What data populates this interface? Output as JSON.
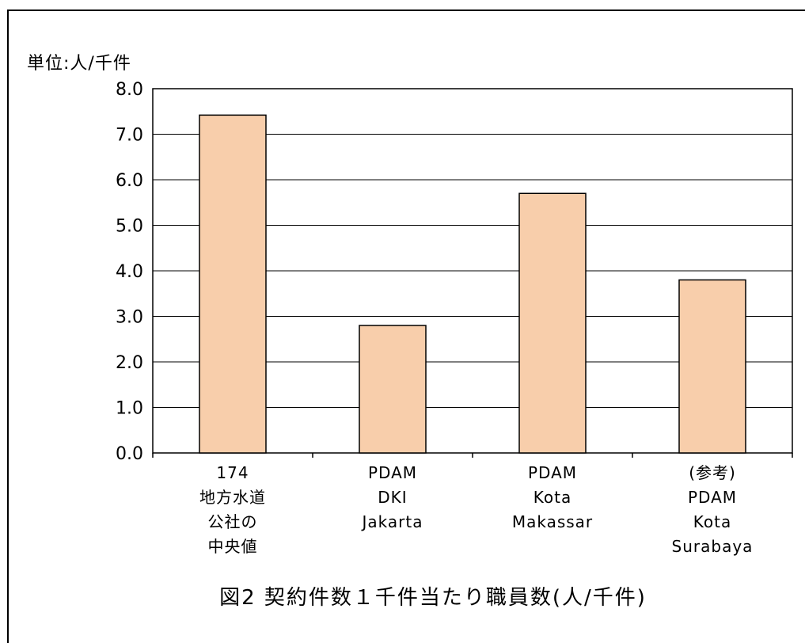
{
  "chart_data": {
    "type": "bar",
    "unit_label": "単位:人/千件",
    "title": "図2 契約件数１千件当たり職員数(人/千件)",
    "categories": [
      [
        "174",
        "地方水道",
        "公社の",
        "中央値"
      ],
      [
        "PDAM",
        "DKI",
        "Jakarta"
      ],
      [
        "PDAM",
        "Kota",
        "Makassar"
      ],
      [
        "(参考)",
        "PDAM",
        "Kota",
        "Surabaya"
      ]
    ],
    "values": [
      7.42,
      2.8,
      5.7,
      3.8
    ],
    "ylim": [
      0,
      8.0
    ],
    "yticks": [
      "0.0",
      "1.0",
      "2.0",
      "3.0",
      "4.0",
      "5.0",
      "6.0",
      "7.0",
      "8.0"
    ],
    "grid": true,
    "bar_color": "#f8ceab",
    "bar_stroke": "#000000"
  }
}
